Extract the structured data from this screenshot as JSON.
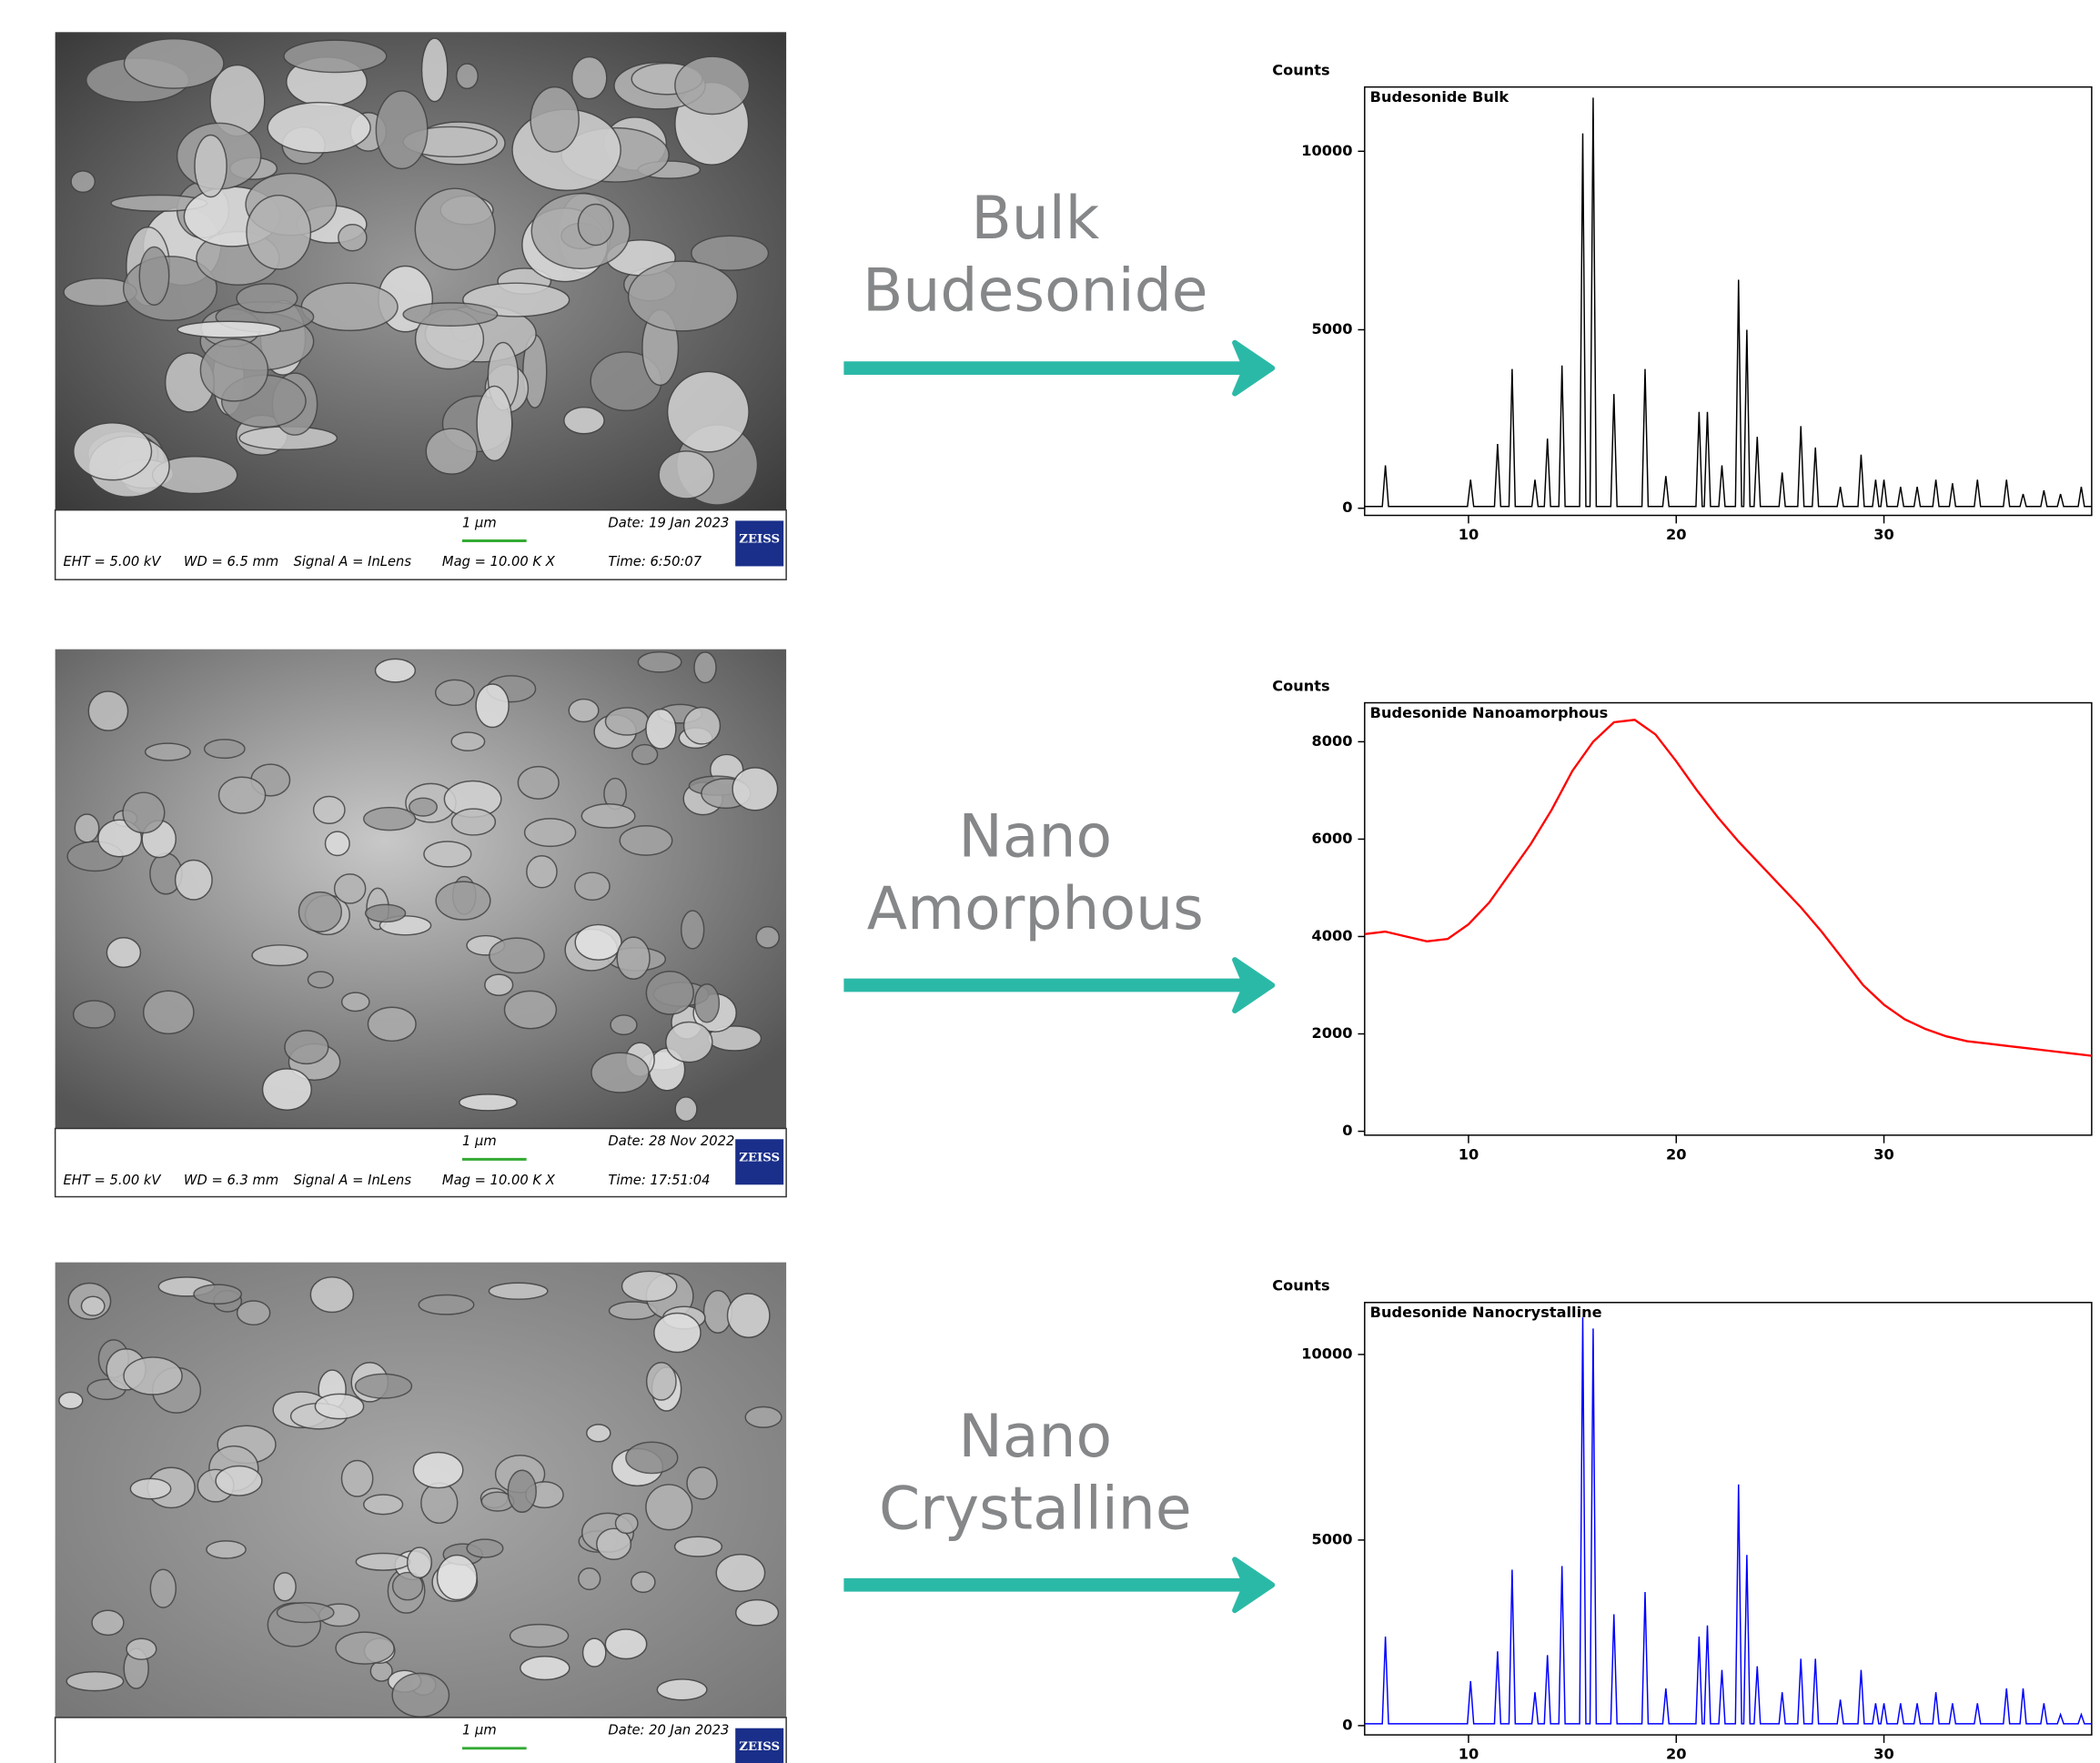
{
  "chart_data": [
    {
      "type": "line",
      "title": "Budesonide Bulk",
      "y_label": "Counts",
      "color": "#000000",
      "xlim": [
        5,
        40
      ],
      "xticks": [
        10,
        20,
        30
      ],
      "ylim": [
        -200,
        11800
      ],
      "yticks": [
        0,
        5000,
        10000
      ],
      "x": [
        5,
        5.85,
        6.0,
        6.15,
        9.95,
        10.1,
        10.25,
        11.25,
        11.4,
        11.55,
        11.95,
        12.1,
        12.25,
        13.05,
        13.2,
        13.35,
        13.65,
        13.8,
        13.95,
        14.35,
        14.5,
        14.65,
        15.35,
        15.5,
        15.65,
        15.85,
        16.0,
        16.15,
        16.85,
        17.0,
        17.15,
        18.35,
        18.5,
        18.65,
        19.35,
        19.5,
        19.65,
        20.95,
        21.1,
        21.25,
        21.35,
        21.5,
        21.65,
        22.05,
        22.2,
        22.35,
        22.85,
        23.0,
        23.15,
        23.25,
        23.4,
        23.55,
        23.75,
        23.9,
        24.05,
        24.95,
        25.1,
        25.25,
        25.85,
        26.0,
        26.15,
        26.55,
        26.7,
        26.85,
        27.75,
        27.9,
        28.05,
        28.75,
        28.9,
        29.05,
        29.45,
        29.6,
        29.75,
        29.85,
        30.0,
        30.15,
        30.65,
        30.8,
        30.95,
        31.45,
        31.6,
        31.75,
        32.35,
        32.5,
        32.65,
        33.15,
        33.3,
        33.45,
        34.35,
        34.5,
        34.65,
        35.75,
        35.9,
        36.05,
        36.55,
        36.7,
        36.85,
        37.55,
        37.7,
        37.85,
        38.35,
        38.5,
        38.65,
        39.35,
        39.5,
        39.65,
        40
      ],
      "values": [
        50,
        50,
        1200,
        50,
        50,
        800,
        50,
        50,
        1800,
        50,
        50,
        3900,
        50,
        50,
        800,
        50,
        50,
        1950,
        50,
        50,
        4000,
        50,
        50,
        10500,
        50,
        50,
        11500,
        50,
        50,
        3200,
        50,
        50,
        3900,
        50,
        50,
        900,
        50,
        50,
        2700,
        50,
        50,
        2700,
        50,
        50,
        1200,
        50,
        50,
        6400,
        50,
        50,
        5000,
        50,
        50,
        2000,
        50,
        50,
        1000,
        50,
        50,
        2300,
        50,
        50,
        1700,
        50,
        50,
        600,
        50,
        50,
        1500,
        50,
        50,
        800,
        50,
        50,
        800,
        50,
        50,
        600,
        50,
        50,
        600,
        50,
        50,
        800,
        50,
        50,
        700,
        50,
        50,
        800,
        50,
        50,
        800,
        50,
        50,
        400,
        50,
        50,
        500,
        50,
        50,
        400,
        50,
        50,
        600,
        50,
        50
      ]
    },
    {
      "type": "line",
      "title": "Budesonide Nanoamorphous",
      "y_label": "Counts",
      "color": "#ff0000",
      "xlim": [
        5,
        40
      ],
      "xticks": [
        10,
        20,
        30
      ],
      "ylim": [
        -80,
        8800
      ],
      "yticks": [
        0,
        2000,
        4000,
        6000,
        8000
      ],
      "x": [
        5,
        6,
        7,
        8,
        9,
        10,
        11,
        12,
        13,
        14,
        15,
        16,
        17,
        18,
        19,
        20,
        21,
        22,
        23,
        24,
        25,
        26,
        27,
        28,
        29,
        30,
        31,
        32,
        33,
        34,
        35,
        36,
        37,
        38,
        39,
        40
      ],
      "values": [
        4050,
        4100,
        4000,
        3900,
        3950,
        4250,
        4700,
        5300,
        5900,
        6600,
        7400,
        8000,
        8400,
        8450,
        8150,
        7600,
        7000,
        6450,
        5950,
        5500,
        5050,
        4600,
        4100,
        3550,
        3000,
        2600,
        2300,
        2100,
        1950,
        1850,
        1800,
        1750,
        1700,
        1650,
        1600,
        1550
      ]
    },
    {
      "type": "line",
      "title": "Budesonide Nanocrystalline",
      "y_label": "Counts",
      "color": "#0000ff",
      "xlim": [
        5,
        40
      ],
      "xticks": [
        10,
        20,
        30
      ],
      "ylim": [
        -250,
        11400
      ],
      "yticks": [
        0,
        5000,
        10000
      ],
      "x": [
        5,
        5.85,
        6.0,
        6.15,
        9.95,
        10.1,
        10.25,
        11.25,
        11.4,
        11.55,
        11.95,
        12.1,
        12.25,
        13.05,
        13.2,
        13.35,
        13.65,
        13.8,
        13.95,
        14.35,
        14.5,
        14.65,
        15.35,
        15.5,
        15.65,
        15.85,
        16.0,
        16.15,
        16.85,
        17.0,
        17.15,
        18.35,
        18.5,
        18.65,
        19.35,
        19.5,
        19.65,
        20.95,
        21.1,
        21.25,
        21.35,
        21.5,
        21.65,
        22.05,
        22.2,
        22.35,
        22.85,
        23.0,
        23.15,
        23.25,
        23.4,
        23.55,
        23.75,
        23.9,
        24.05,
        24.95,
        25.1,
        25.25,
        25.85,
        26.0,
        26.15,
        26.55,
        26.7,
        26.85,
        27.75,
        27.9,
        28.05,
        28.75,
        28.9,
        29.05,
        29.45,
        29.6,
        29.75,
        29.85,
        30.0,
        30.15,
        30.65,
        30.8,
        30.95,
        31.45,
        31.6,
        31.75,
        32.35,
        32.5,
        32.65,
        33.15,
        33.3,
        33.45,
        34.35,
        34.5,
        34.65,
        35.75,
        35.9,
        36.05,
        36.55,
        36.7,
        36.85,
        37.55,
        37.7,
        37.85,
        38.35,
        38.5,
        38.65,
        39.35,
        39.5,
        39.65,
        40
      ],
      "values": [
        50,
        50,
        2400,
        50,
        50,
        1200,
        50,
        50,
        2000,
        50,
        50,
        4200,
        50,
        50,
        900,
        50,
        50,
        1900,
        50,
        50,
        4300,
        50,
        50,
        11000,
        50,
        50,
        10700,
        50,
        50,
        3000,
        50,
        50,
        3600,
        50,
        50,
        1000,
        50,
        50,
        2400,
        50,
        50,
        2700,
        50,
        50,
        1500,
        50,
        50,
        6500,
        50,
        50,
        4600,
        50,
        50,
        1600,
        50,
        50,
        900,
        50,
        50,
        1800,
        50,
        50,
        1800,
        50,
        50,
        700,
        50,
        50,
        1500,
        50,
        50,
        600,
        50,
        50,
        600,
        50,
        50,
        600,
        50,
        50,
        600,
        50,
        50,
        900,
        50,
        50,
        600,
        50,
        50,
        600,
        50,
        50,
        1000,
        50,
        50,
        1000,
        50,
        50,
        600,
        50,
        50,
        300,
        50,
        50,
        300,
        50,
        50
      ]
    }
  ],
  "rows": [
    {
      "label": [
        "Bulk",
        "Budesonide"
      ],
      "sem": {
        "scale": "1 µm",
        "date": "Date: 19 Jan 2023",
        "eht": "EHT = 5.00 kV",
        "wd": "WD = 6.5 mm",
        "signal": "Signal A = InLens",
        "mag": "Mag = 10.00 K X",
        "time": "Time: 6:50:07",
        "logo": "ZEISS"
      }
    },
    {
      "label": [
        "Nano",
        "Amorphous"
      ],
      "sem": {
        "scale": "1 µm",
        "date": "Date: 28 Nov 2022",
        "eht": "EHT = 5.00 kV",
        "wd": "WD = 6.3 mm",
        "signal": "Signal A = InLens",
        "mag": "Mag = 10.00 K X",
        "time": "Time: 17:51:04",
        "logo": "ZEISS"
      }
    },
    {
      "label": [
        "Nano",
        "Crystalline"
      ],
      "sem": {
        "scale": "1 µm",
        "date": "Date: 20 Jan 2023",
        "logo": "ZEISS"
      }
    }
  ]
}
